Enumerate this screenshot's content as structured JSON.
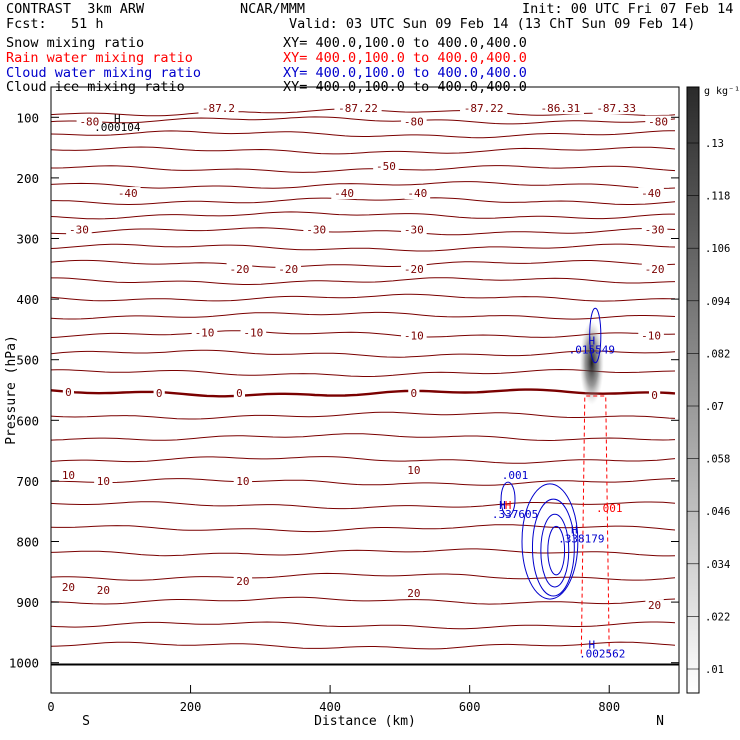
{
  "header": {
    "model": "CONTRAST  3km ARW",
    "source": "NCAR/MMM",
    "init": "Init: 00 UTC Fri 07 Feb 14",
    "fcst": "Fcst:   51 h",
    "valid": "Valid: 03 UTC Sun 09 Feb 14 (13 ChT Sun 09 Feb 14)"
  },
  "fields": [
    {
      "name": "Snow mixing ratio",
      "xy": "XY= 400.0,100.0 to 400.0,400.0",
      "color": "#000000"
    },
    {
      "name": "Rain water mixing ratio",
      "xy": "XY= 400.0,100.0 to 400.0,400.0",
      "color": "#ff0000"
    },
    {
      "name": "Cloud water mixing ratio",
      "xy": "XY= 400.0,100.0 to 400.0,400.0",
      "color": "#0000cc"
    },
    {
      "name": "Cloud ice mixing ratio",
      "xy": "XY= 400.0,100.0 to 400.0,400.0",
      "color": "#000000"
    }
  ],
  "colors": {
    "temperature_contour": "#7a0000",
    "cloud_water_contour": "#0000cc",
    "rain_contour": "#ff0000",
    "axis": "#000000"
  },
  "chart_data": {
    "type": "contour",
    "xlabel": "Distance (km)",
    "ylabel": "Pressure (hPa)",
    "xlim": [
      0,
      900
    ],
    "ylim": [
      1050,
      50
    ],
    "x_ticks": [
      0,
      200,
      400,
      600,
      800
    ],
    "y_ticks": [
      100,
      200,
      300,
      400,
      500,
      600,
      700,
      800,
      900,
      1000
    ],
    "x_end_labels": {
      "left": "S",
      "right": "N"
    },
    "colorbar": {
      "units": "g kg⁻¹",
      "levels": [
        0.01,
        0.022,
        0.034,
        0.046,
        0.058,
        0.07,
        0.082,
        0.094,
        0.106,
        0.118,
        0.13
      ],
      "labels": [
        ".01",
        ".022",
        ".034",
        ".046",
        ".058",
        ".07",
        ".082",
        ".094",
        ".106",
        ".118",
        ".13"
      ]
    },
    "temperature_labels": [
      {
        "text": "-87.2",
        "x": 240,
        "p": 85
      },
      {
        "text": "-87.22",
        "x": 440,
        "p": 85
      },
      {
        "text": "-87.22",
        "x": 620,
        "p": 85
      },
      {
        "text": "-86.31",
        "x": 730,
        "p": 85
      },
      {
        "text": "-87.33",
        "x": 810,
        "p": 85
      },
      {
        "text": "-80",
        "x": 55,
        "p": 107
      },
      {
        "text": "-80",
        "x": 520,
        "p": 107
      },
      {
        "text": "-80",
        "x": 870,
        "p": 107
      },
      {
        "text": "-50",
        "x": 480,
        "p": 180
      },
      {
        "text": "-40",
        "x": 110,
        "p": 225
      },
      {
        "text": "-40",
        "x": 420,
        "p": 225
      },
      {
        "text": "-40",
        "x": 525,
        "p": 225
      },
      {
        "text": "-40",
        "x": 860,
        "p": 225
      },
      {
        "text": "-30",
        "x": 40,
        "p": 285
      },
      {
        "text": "-30",
        "x": 380,
        "p": 285
      },
      {
        "text": "-30",
        "x": 520,
        "p": 285
      },
      {
        "text": "-30",
        "x": 865,
        "p": 285
      },
      {
        "text": "-20",
        "x": 270,
        "p": 350
      },
      {
        "text": "-20",
        "x": 340,
        "p": 350
      },
      {
        "text": "-20",
        "x": 520,
        "p": 350
      },
      {
        "text": "-20",
        "x": 865,
        "p": 350
      },
      {
        "text": "-10",
        "x": 220,
        "p": 455
      },
      {
        "text": "-10",
        "x": 290,
        "p": 455
      },
      {
        "text": "-10",
        "x": 520,
        "p": 460
      },
      {
        "text": "-10",
        "x": 860,
        "p": 460
      },
      {
        "text": "0",
        "x": 25,
        "p": 553
      },
      {
        "text": "0",
        "x": 155,
        "p": 555
      },
      {
        "text": "0",
        "x": 270,
        "p": 555
      },
      {
        "text": "0",
        "x": 520,
        "p": 555
      },
      {
        "text": "0",
        "x": 865,
        "p": 558
      },
      {
        "text": "10",
        "x": 25,
        "p": 690
      },
      {
        "text": "10",
        "x": 75,
        "p": 700
      },
      {
        "text": "10",
        "x": 275,
        "p": 700
      },
      {
        "text": "10",
        "x": 520,
        "p": 682
      },
      {
        "text": "20",
        "x": 25,
        "p": 875
      },
      {
        "text": "20",
        "x": 75,
        "p": 880
      },
      {
        "text": "20",
        "x": 275,
        "p": 865
      },
      {
        "text": "20",
        "x": 520,
        "p": 885
      },
      {
        "text": "20",
        "x": 865,
        "p": 905
      }
    ],
    "extrema_labels": [
      {
        "text": "H",
        "x": 95,
        "p": 102,
        "color": "#000000"
      },
      {
        "text": ".000104",
        "x": 95,
        "p": 116,
        "color": "#000000"
      },
      {
        "text": "H",
        "x": 775,
        "p": 468,
        "color": "#0000cc"
      },
      {
        "text": ".015549",
        "x": 775,
        "p": 483,
        "color": "#0000cc"
      },
      {
        "text": ".001",
        "x": 665,
        "p": 690,
        "color": "#0000cc"
      },
      {
        "text": "H",
        "x": 647,
        "p": 740,
        "color": "#0000cc"
      },
      {
        "text": "H",
        "x": 655,
        "p": 740,
        "color": "#ff0000"
      },
      {
        "text": ".337605",
        "x": 665,
        "p": 755,
        "color": "#0000cc"
      },
      {
        "text": ".001",
        "x": 800,
        "p": 745,
        "color": "#ff0000"
      },
      {
        "text": "H",
        "x": 750,
        "p": 780,
        "color": "#0000cc"
      },
      {
        "text": ".338179",
        "x": 760,
        "p": 795,
        "color": "#0000cc"
      },
      {
        "text": "H",
        "x": 775,
        "p": 970,
        "color": "#0000cc"
      },
      {
        "text": ".002562",
        "x": 790,
        "p": 985,
        "color": "#0000cc"
      }
    ],
    "ice_max": {
      "x": 775,
      "p": 505
    }
  }
}
